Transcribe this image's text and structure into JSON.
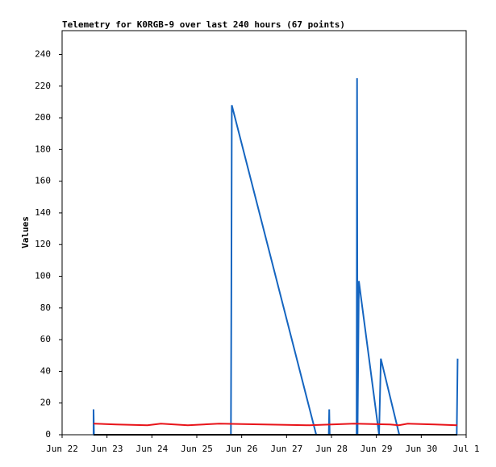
{
  "chart_data": {
    "type": "line",
    "title": "Telemetry for K0RGB-9 over last 240 hours (67 points)",
    "y_label": "Values",
    "xlim": [
      0,
      9
    ],
    "xticks": [
      {
        "value": 0,
        "label": "Jun 22"
      },
      {
        "value": 1,
        "label": "Jun 23"
      },
      {
        "value": 2,
        "label": "Jun 24"
      },
      {
        "value": 3,
        "label": "Jun 25"
      },
      {
        "value": 4,
        "label": "Jun 26"
      },
      {
        "value": 5,
        "label": "Jun 27"
      },
      {
        "value": 6,
        "label": "Jun 28"
      },
      {
        "value": 7,
        "label": "Jun 29"
      },
      {
        "value": 8,
        "label": "Jun 30"
      },
      {
        "value": 9,
        "label": "Jul 1"
      }
    ],
    "ylim": [
      0,
      255
    ],
    "yticks": [
      0,
      20,
      40,
      60,
      80,
      100,
      120,
      140,
      160,
      180,
      200,
      220,
      240
    ],
    "series": [
      {
        "color": "#1565c0",
        "x": [
          0.7,
          0.7,
          0.71,
          3.76,
          3.77,
          3.78,
          5.66,
          5.94,
          5.95,
          5.96,
          6.56,
          6.57,
          6.58,
          6.61,
          7.06,
          7.1,
          7.51,
          8.79,
          8.8,
          8.81
        ],
        "values": [
          0,
          16,
          0,
          0,
          88,
          208,
          0,
          0,
          16,
          0,
          0,
          225,
          0,
          97,
          0,
          48,
          0,
          0,
          24,
          48
        ]
      },
      {
        "color": "#e8141a",
        "x": [
          0.7,
          1.2,
          1.9,
          2.2,
          2.8,
          3.5,
          4.5,
          5.5,
          6.5,
          7.3,
          7.5,
          7.7,
          8.3,
          8.8
        ],
        "values": [
          7,
          6.5,
          6,
          7,
          6,
          7,
          6.5,
          6,
          7,
          6.5,
          6,
          7,
          6.5,
          6
        ]
      },
      {
        "color": "#000000",
        "x": [
          0.7,
          8.8
        ],
        "values": [
          0,
          0
        ]
      }
    ]
  }
}
